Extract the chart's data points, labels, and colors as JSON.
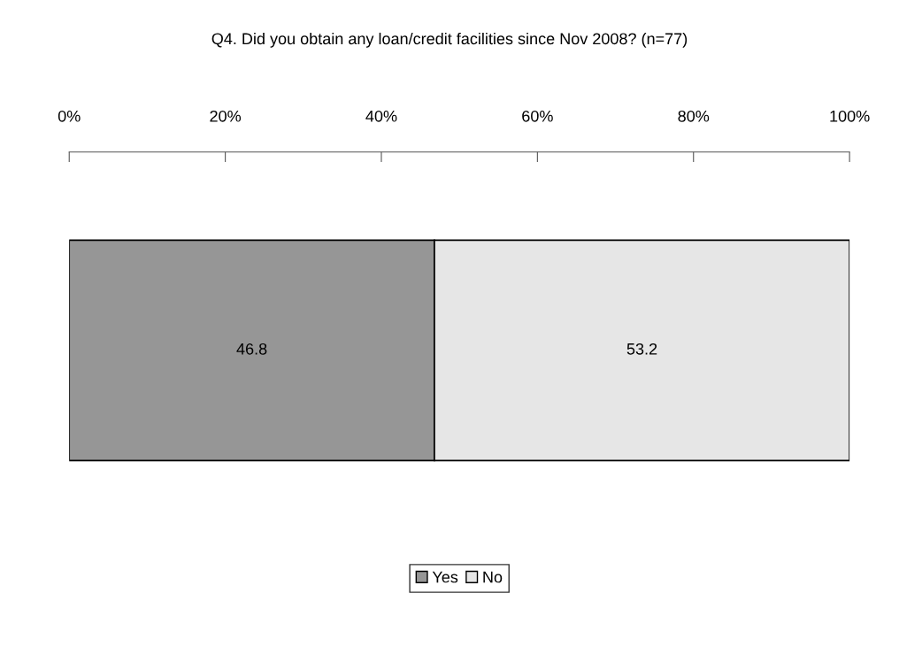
{
  "chart_data": {
    "type": "bar",
    "orientation": "horizontal",
    "stacked": true,
    "title": "Q4. Did you obtain any loan/credit facilities since Nov 2008? (n=77)",
    "categories": [
      null
    ],
    "series": [
      {
        "name": "Yes",
        "color": "#969696",
        "values": [
          46.8
        ]
      },
      {
        "name": "No",
        "color": "#e6e6e6",
        "values": [
          53.2
        ]
      }
    ],
    "xlim": [
      0,
      100
    ],
    "xticks": [
      {
        "value": 0,
        "label": "0%"
      },
      {
        "value": 20,
        "label": "20%"
      },
      {
        "value": 40,
        "label": "40%"
      },
      {
        "value": 60,
        "label": "60%"
      },
      {
        "value": 80,
        "label": "80%"
      },
      {
        "value": 100,
        "label": "100%"
      }
    ],
    "data_labels": true,
    "grid": false,
    "legend": "bottom",
    "tick_labels": "x"
  }
}
